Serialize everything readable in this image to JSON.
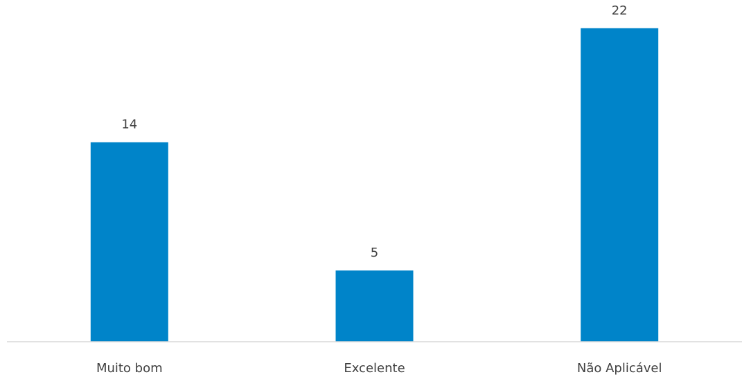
{
  "chart_data": {
    "type": "bar",
    "categories": [
      "Muito bom",
      "Excelente",
      "Não Aplicável"
    ],
    "values": [
      14,
      5,
      22
    ],
    "data_labels": [
      "14",
      "5",
      "22"
    ],
    "title": "",
    "xlabel": "",
    "ylabel": "",
    "ylim": [
      0,
      24
    ],
    "grid": false,
    "legend": "none",
    "colors": {
      "bar": "#0084c9",
      "axis": "#d9d9d9",
      "text": "#3f3f3f"
    }
  }
}
